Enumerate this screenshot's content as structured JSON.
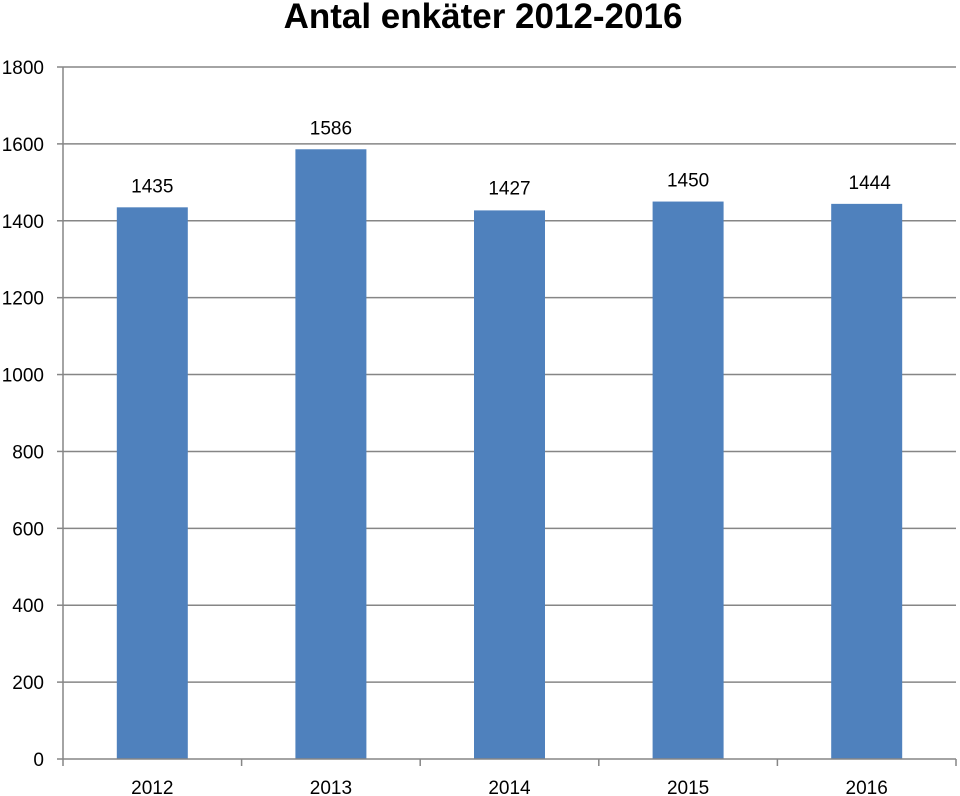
{
  "chart_data": {
    "type": "bar",
    "title": "Antal enkäter 2012-2016",
    "categories": [
      "2012",
      "2013",
      "2014",
      "2015",
      "2016"
    ],
    "values": [
      1435,
      1586,
      1427,
      1450,
      1444
    ],
    "data_labels": [
      "1435",
      "1586",
      "1427",
      "1450",
      "1444"
    ],
    "xlabel": "",
    "ylabel": "",
    "ylim": [
      0,
      1800
    ],
    "yticks": [
      0,
      200,
      400,
      600,
      800,
      1000,
      1200,
      1400,
      1600,
      1800
    ],
    "ytick_labels": [
      "0",
      "200",
      "400",
      "600",
      "800",
      "1000",
      "1200",
      "1400",
      "1600",
      "1800"
    ],
    "grid": true,
    "legend": "none",
    "colors": {
      "bar": "#4F81BD",
      "grid": "#868686",
      "axis": "#868686"
    }
  }
}
